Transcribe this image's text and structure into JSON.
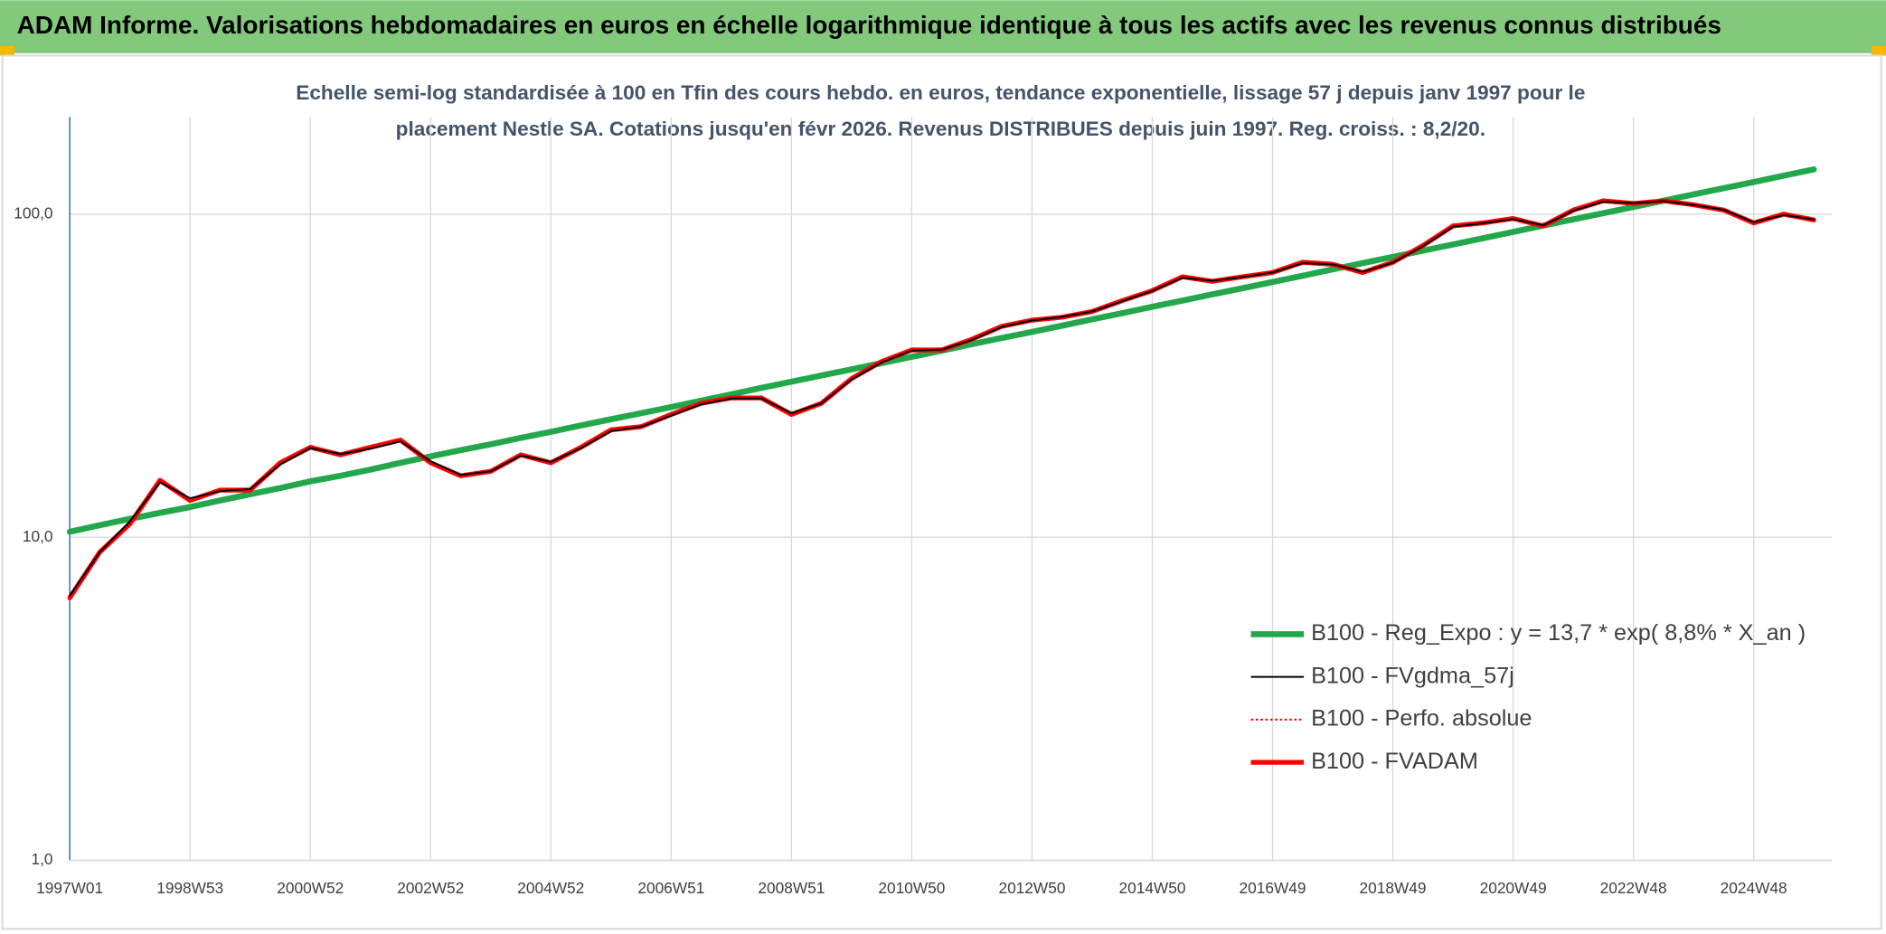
{
  "header": {
    "title": "ADAM Informe. Valorisations hebdomadaires en euros en échelle logarithmique identique à tous les actifs avec les revenus connus distribués"
  },
  "chart_data": {
    "type": "line",
    "subtitle": [
      "Echelle semi-log standardisée à 100 en Tfin des cours hebdo. en euros, tendance exponentielle, lissage 57 j depuis janv 1997 pour le",
      "placement Nestle SA. Cotations jusqu'en févr 2026. Revenus DISTRIBUES depuis juin 1997. Reg. croiss. : 8,2/20."
    ],
    "categories": [
      "1997W01",
      null,
      null,
      null,
      "1998W53",
      null,
      null,
      null,
      "2000W52",
      null,
      null,
      null,
      "2002W52",
      null,
      null,
      null,
      "2004W52",
      null,
      null,
      null,
      "2006W51",
      null,
      null,
      null,
      "2008W51",
      null,
      null,
      null,
      "2010W50",
      null,
      null,
      null,
      "2012W50",
      null,
      null,
      null,
      "2014W50",
      null,
      null,
      null,
      "2016W49",
      null,
      null,
      null,
      "2018W49",
      null,
      null,
      null,
      "2020W49",
      null,
      null,
      null,
      "2022W48",
      null,
      null,
      null,
      "2024W48",
      null,
      null
    ],
    "log_scale": true,
    "ylim": [
      1,
      200
    ],
    "yticks": [
      {
        "value": 1,
        "label": "1,0"
      },
      {
        "value": 10,
        "label": "10,0"
      },
      {
        "value": 100,
        "label": "100,0"
      }
    ],
    "grid": true,
    "legend": "lower right",
    "series": [
      {
        "name": "B100 - Reg_Expo : y = 13,7 * exp( 8,8% *  X_an )",
        "color": "#22a84a",
        "values": [
          10.4,
          10.9,
          11.4,
          11.9,
          12.4,
          13.0,
          13.6,
          14.2,
          14.9,
          15.5,
          16.2,
          17.0,
          17.8,
          18.6,
          19.4,
          20.3,
          21.2,
          22.2,
          23.2,
          24.2,
          25.3,
          26.5,
          27.7,
          29.0,
          30.3,
          31.7,
          33.1,
          34.6,
          36.2,
          37.8,
          39.6,
          41.4,
          43.2,
          45.2,
          47.3,
          49.4,
          51.7,
          54.0,
          56.5,
          59.0,
          61.7,
          64.5,
          67.5,
          70.6,
          73.8,
          77.1,
          80.6,
          84.3,
          88.1,
          92.2,
          96.4,
          100.7,
          105.3,
          110.1,
          115.1,
          120.4,
          125.8,
          131.6,
          137.6
        ]
      },
      {
        "name": "B100 - FVgdma_57j",
        "color": "#000000",
        "values": [
          6.6,
          9.0,
          11.2,
          14.8,
          13.2,
          13.9,
          14.1,
          16.8,
          18.9,
          18.1,
          18.8,
          19.8,
          17.2,
          15.6,
          16.0,
          17.9,
          17.1,
          18.9,
          21.3,
          22.0,
          23.8,
          25.8,
          26.9,
          26.9,
          24.2,
          26.0,
          30.8,
          34.8,
          37.8,
          38.1,
          40.8,
          44.8,
          46.9,
          48.1,
          50.0,
          53.8,
          57.9,
          63.6,
          62.2,
          63.9,
          66.0,
          70.6,
          70.0,
          66.3,
          70.8,
          79.6,
          91.5,
          93.8,
          96.6,
          92.4,
          102.5,
          109.5,
          108.2,
          109.8,
          106.8,
          103.2,
          94.5,
          99.4,
          96.3
        ]
      },
      {
        "name": "B100 - Perfo. absolue",
        "color": "#ff0000",
        "line_style": "dotted",
        "values": [
          6.5,
          9.0,
          11.0,
          15.0,
          13.0,
          14.0,
          14.0,
          17.0,
          19.0,
          18.0,
          19.0,
          20.0,
          17.0,
          15.5,
          16.0,
          18.0,
          17.0,
          19.0,
          21.5,
          22.0,
          24.0,
          26.0,
          27.0,
          27.0,
          24.0,
          26.0,
          31.0,
          35.0,
          38.0,
          38.0,
          41.0,
          45.0,
          47.0,
          48.0,
          50.0,
          54.0,
          58.0,
          64.0,
          62.0,
          64.0,
          66.0,
          71.0,
          70.0,
          66.0,
          71.0,
          80.0,
          92.0,
          94.0,
          97.0,
          92.0,
          103.0,
          110.0,
          108.0,
          110.0,
          107.0,
          103.0,
          94.0,
          100.0,
          96.0
        ]
      },
      {
        "name": "B100 - FVADAM",
        "color": "#ff0000",
        "values": [
          6.5,
          9.0,
          11.0,
          15.0,
          13.0,
          14.0,
          14.0,
          17.0,
          19.0,
          18.0,
          19.0,
          20.0,
          17.0,
          15.5,
          16.0,
          18.0,
          17.0,
          19.0,
          21.5,
          22.0,
          24.0,
          26.0,
          27.0,
          27.0,
          24.0,
          26.0,
          31.0,
          35.0,
          38.0,
          38.0,
          41.0,
          45.0,
          47.0,
          48.0,
          50.0,
          54.0,
          58.0,
          64.0,
          62.0,
          64.0,
          66.0,
          71.0,
          70.0,
          66.0,
          71.0,
          80.0,
          92.0,
          94.0,
          97.0,
          92.0,
          103.0,
          110.0,
          108.0,
          110.0,
          107.0,
          103.0,
          94.0,
          100.0,
          96.0
        ]
      }
    ]
  }
}
